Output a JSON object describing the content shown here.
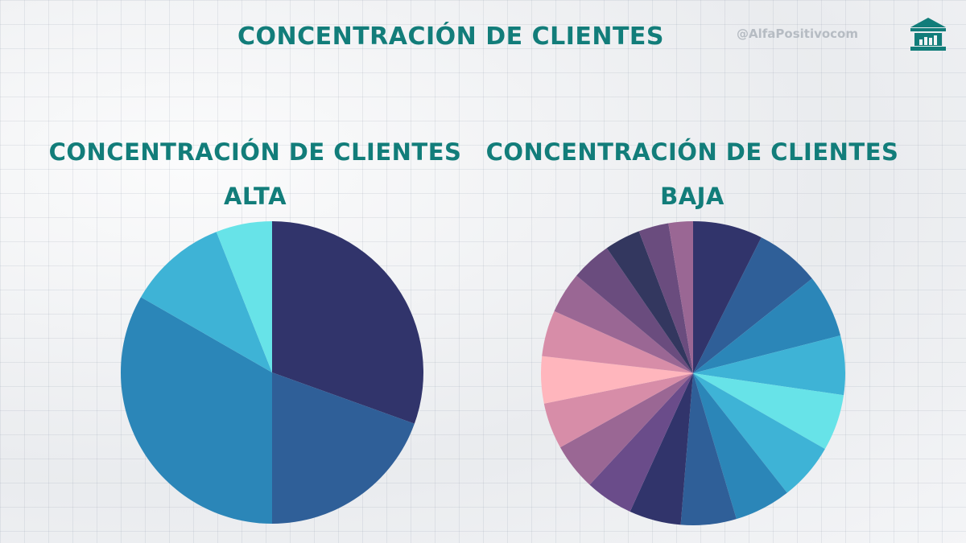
{
  "header": {
    "title": "Concentración de clientes",
    "handle": "@AlfaPositivocom",
    "logo_icon": "bank-building-icon"
  },
  "chart_data": [
    {
      "type": "pie",
      "title_line1": "Concentración de clientes",
      "title_line2": "alta",
      "start_angle_deg": 0,
      "values": [
        30.5,
        19.5,
        33.3,
        10.7,
        6.0
      ],
      "colors": [
        "#31346b",
        "#2f5f98",
        "#2b86b8",
        "#3eb3d6",
        "#67e3e8"
      ]
    },
    {
      "type": "pie",
      "title_line1": "Concentración de clientes",
      "title_line2": "baja",
      "start_angle_deg": 0,
      "values": [
        7.4,
        6.9,
        6.7,
        6.3,
        6.0,
        6.1,
        6.0,
        5.9,
        5.5,
        5.1,
        5.0,
        4.9,
        5.0,
        4.9,
        4.4,
        4.3,
        3.8,
        3.2,
        2.6
      ],
      "colors": [
        "#31346b",
        "#2f5f98",
        "#2b86b8",
        "#3eb3d6",
        "#67e3e8",
        "#3eb3d6",
        "#2b86b8",
        "#2f5f98",
        "#31346b",
        "#6a4c8a",
        "#9a6794",
        "#d78da8",
        "#ffb6bd",
        "#d78da8",
        "#9a6794",
        "#6a4c7e",
        "#33375f",
        "#6a4c7e",
        "#9a6794"
      ]
    }
  ]
}
